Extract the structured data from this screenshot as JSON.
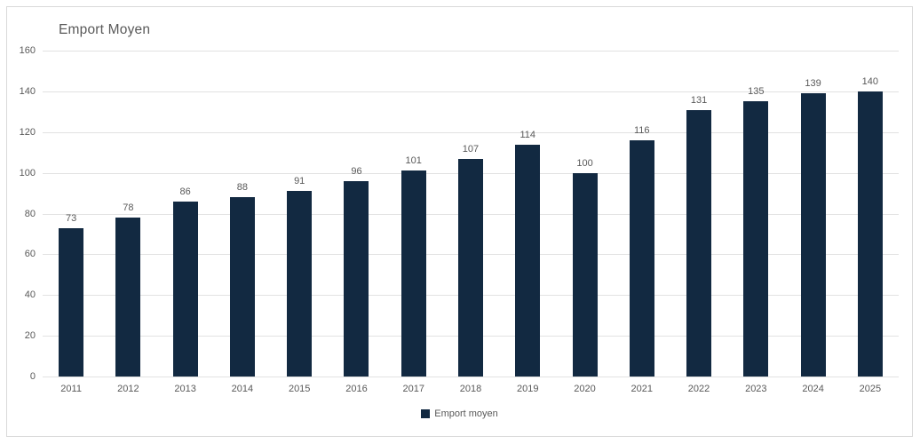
{
  "chart_data": {
    "type": "bar",
    "title": "Emport Moyen",
    "categories": [
      "2011",
      "2012",
      "2013",
      "2014",
      "2015",
      "2016",
      "2017",
      "2018",
      "2019",
      "2020",
      "2021",
      "2022",
      "2023",
      "2024",
      "2025"
    ],
    "values": [
      73,
      78,
      86,
      88,
      91,
      96,
      101,
      107,
      114,
      100,
      116,
      131,
      135,
      139,
      140
    ],
    "series_name": "Emport moyen",
    "xlabel": "",
    "ylabel": "",
    "ylim": [
      0,
      160
    ],
    "yticks": [
      0,
      20,
      40,
      60,
      80,
      100,
      120,
      140,
      160
    ],
    "grid": true,
    "legend_position": "bottom",
    "legend_label": "Emport moyen",
    "bar_color": "#122941",
    "text_color": "#595959",
    "gridline_color": "#e2e2e2",
    "border_color": "#d9d9d9"
  }
}
